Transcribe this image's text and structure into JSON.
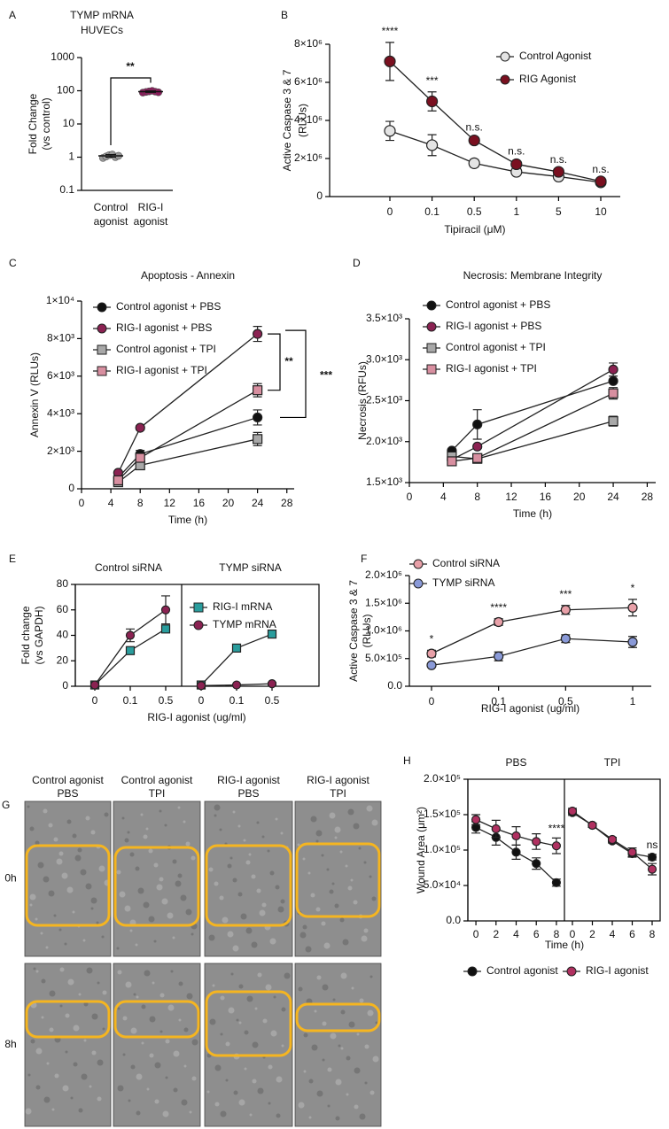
{
  "chart_data": [
    {
      "type": "dot",
      "panel": "A",
      "title": [
        "TYMP mRNA",
        "HUVECs"
      ],
      "ylabel": [
        "Fold Change",
        "(vs control)"
      ],
      "categories": [
        [
          "Control",
          "agonist"
        ],
        [
          "RIG-I",
          "agonist"
        ]
      ],
      "category_colors": [
        "#111111",
        "#8b1a5a"
      ],
      "log_scale": true,
      "ylim": [
        0.1,
        1000
      ],
      "yticks": [
        0.1,
        1,
        10,
        100,
        1000
      ],
      "points": [
        [
          0.95,
          1.05,
          1.15,
          1.2,
          1.0,
          1.1
        ],
        [
          88,
          92,
          96,
          100,
          94,
          90
        ]
      ],
      "point_colors": [
        "#999999",
        "#8b1a5a"
      ],
      "means": [
        1.1,
        94
      ],
      "errors": [
        0.1,
        5
      ],
      "annotation": "**"
    },
    {
      "type": "line",
      "panel": "B",
      "xlabel": "Tipiracil (μM)",
      "ylabel": [
        "Active Caspase 3 & 7",
        "(RLUs)"
      ],
      "categories": [
        "0",
        "0.1",
        "0.5",
        "1",
        "5",
        "10"
      ],
      "ylim": [
        0,
        8000000
      ],
      "yticks": [
        0,
        {
          "value": 2000000,
          "label": "2×10⁶"
        },
        {
          "value": 4000000,
          "label": "4×10⁶"
        },
        {
          "value": 6000000,
          "label": "6×10⁶"
        },
        {
          "value": 8000000,
          "label": "8×10⁶"
        }
      ],
      "series": [
        {
          "name": "Control Agonist",
          "color": "#e4e4e4",
          "marker": "circle",
          "values": [
            3450000,
            2700000,
            1750000,
            1300000,
            1050000,
            750000
          ],
          "errors": [
            500000,
            550000,
            200000,
            100000,
            100000,
            50000
          ]
        },
        {
          "name": "RIG Agonist",
          "color": "#7a1020",
          "marker": "circle",
          "values": [
            7100000,
            5000000,
            2950000,
            1700000,
            1300000,
            800000
          ],
          "errors": [
            1000000,
            500000,
            100000,
            100000,
            50000,
            50000
          ]
        }
      ],
      "annotations": [
        "****",
        "***",
        "n.s.",
        "n.s.",
        "n.s.",
        "n.s."
      ],
      "legend": "upper right"
    },
    {
      "type": "line",
      "panel": "C",
      "title": "Apoptosis - Annexin",
      "xlabel": "Time (h)",
      "ylabel": "Annexin V (RLUs)",
      "xlim": [
        0,
        29
      ],
      "xticks": [
        0,
        4,
        8,
        12,
        16,
        20,
        24,
        28
      ],
      "ylim": [
        0,
        10000
      ],
      "yticks": [
        0,
        {
          "value": 2000,
          "label": "2×10³"
        },
        {
          "value": 4000,
          "label": "4×10³"
        },
        {
          "value": 6000,
          "label": "6×10³"
        },
        {
          "value": 8000,
          "label": "8×10³"
        },
        {
          "value": 10000,
          "label": "1×10⁴"
        }
      ],
      "series": [
        {
          "name": "Control agonist + PBS",
          "color": "#111111",
          "marker": "circle",
          "x": [
            5,
            8,
            24
          ],
          "values": [
            600,
            1850,
            3800
          ],
          "errors": [
            100,
            200,
            400
          ]
        },
        {
          "name": "RIG-I agonist + PBS",
          "color": "#8b2252",
          "marker": "circle",
          "x": [
            5,
            8,
            24
          ],
          "values": [
            850,
            3250,
            8250
          ],
          "errors": [
            50,
            100,
            400
          ]
        },
        {
          "name": "Control agonist + TPI",
          "color": "#a8a8a8",
          "marker": "square",
          "x": [
            5,
            8,
            24
          ],
          "values": [
            350,
            1250,
            2650
          ],
          "errors": [
            50,
            100,
            350
          ]
        },
        {
          "name": "RIG-I agonist + TPI",
          "color": "#d88fa0",
          "marker": "square",
          "x": [
            5,
            8,
            24
          ],
          "values": [
            450,
            1650,
            5250
          ],
          "errors": [
            50,
            100,
            350
          ]
        }
      ],
      "brackets": [
        "**",
        "***"
      ],
      "legend": "upper left"
    },
    {
      "type": "line",
      "panel": "D",
      "title": "Necrosis: Membrane Integrity",
      "xlabel": "Time (h)",
      "ylabel": "Necrosis (RFUs)",
      "xlim": [
        0,
        29
      ],
      "xticks": [
        0,
        4,
        8,
        12,
        16,
        20,
        24,
        28
      ],
      "ylim": [
        1500,
        3500
      ],
      "yticks": [
        {
          "value": 1500,
          "label": "1.5×10³"
        },
        {
          "value": 2000,
          "label": "2.0×10³"
        },
        {
          "value": 2500,
          "label": "2.5×10³"
        },
        {
          "value": 3000,
          "label": "3.0×10³"
        },
        {
          "value": 3500,
          "label": "3.5×10³"
        }
      ],
      "series": [
        {
          "name": "Control agonist + PBS",
          "color": "#111111",
          "marker": "circle",
          "x": [
            5,
            8,
            24
          ],
          "values": [
            1890,
            2210,
            2740
          ],
          "errors": [
            20,
            180,
            20
          ]
        },
        {
          "name": "RIG-I agonist + PBS",
          "color": "#8b2252",
          "marker": "circle",
          "x": [
            5,
            8,
            24
          ],
          "values": [
            1780,
            1940,
            2880
          ],
          "errors": [
            20,
            20,
            80
          ]
        },
        {
          "name": "Control agonist + TPI",
          "color": "#a8a8a8",
          "marker": "square",
          "x": [
            5,
            8,
            24
          ],
          "values": [
            1820,
            1790,
            2250
          ],
          "errors": [
            20,
            20,
            60
          ]
        },
        {
          "name": "RIG-I agonist + TPI",
          "color": "#d88fa0",
          "marker": "square",
          "x": [
            5,
            8,
            24
          ],
          "values": [
            1760,
            1800,
            2590
          ],
          "errors": [
            20,
            20,
            70
          ]
        }
      ],
      "legend": "upper left"
    },
    {
      "type": "grouped-line",
      "panel": "E",
      "groups": [
        "Control siRNA",
        "TYMP siRNA"
      ],
      "xlabel": "RIG-I agonist (ug/ml)",
      "ylabel": [
        "Fold change",
        "(vs GAPDH)"
      ],
      "categories": [
        "0",
        "0.1",
        "0.5"
      ],
      "ylim": [
        0,
        80
      ],
      "yticks": [
        0,
        20,
        40,
        60,
        80
      ],
      "series": [
        {
          "name": "RIG-I mRNA",
          "color": "#2a9d9d",
          "marker": "square",
          "values": [
            [
              1,
              28,
              45
            ],
            [
              1,
              30,
              41
            ]
          ],
          "errors": [
            [
              0.5,
              2,
              1
            ],
            [
              0.5,
              1,
              2
            ]
          ]
        },
        {
          "name": "TYMP mRNA",
          "color": "#8b2252",
          "marker": "circle",
          "values": [
            [
              1,
              40,
              60
            ],
            [
              0.5,
              1,
              2
            ]
          ],
          "errors": [
            [
              0.5,
              5,
              11
            ],
            [
              0.3,
              0.5,
              1
            ]
          ]
        }
      ],
      "legend": "upper left"
    },
    {
      "type": "line",
      "panel": "F",
      "xlabel": "RIG-I agonist (ug/ml)",
      "ylabel": [
        "Active Caspase 3 & 7",
        "(RLUs)"
      ],
      "categories": [
        "0",
        "0.1",
        "0.5",
        "1"
      ],
      "ylim": [
        0,
        2000000
      ],
      "yticks": [
        {
          "value": 0,
          "label": "0.0"
        },
        {
          "value": 500000,
          "label": "5.0×10⁵"
        },
        {
          "value": 1000000,
          "label": "1.0×10⁶"
        },
        {
          "value": 1500000,
          "label": "1.5×10⁶"
        },
        {
          "value": 2000000,
          "label": "2.0×10⁶"
        }
      ],
      "series": [
        {
          "name": "Control siRNA",
          "color": "#e8a0a8",
          "marker": "circle",
          "values": [
            590000,
            1160000,
            1380000,
            1420000
          ],
          "errors": [
            60000,
            60000,
            80000,
            150000
          ]
        },
        {
          "name": "TYMP siRNA",
          "color": "#8a9ad8",
          "marker": "circle",
          "values": [
            380000,
            540000,
            860000,
            800000
          ],
          "errors": [
            20000,
            80000,
            70000,
            100000
          ]
        }
      ],
      "annotations": [
        "*",
        "****",
        "***",
        "*"
      ],
      "legend": "upper left"
    },
    {
      "type": "image-grid",
      "panel": "G",
      "columns": [
        [
          "Control agonist",
          "PBS"
        ],
        [
          "Control agonist",
          "TPI"
        ],
        [
          "RIG-I agonist",
          "PBS"
        ],
        [
          "RIG-I agonist",
          "TPI"
        ]
      ],
      "rows": [
        "0h",
        "8h"
      ],
      "outline_color": "#f5b520"
    },
    {
      "type": "grouped-line",
      "panel": "H",
      "groups": [
        "PBS",
        "TPI"
      ],
      "xlabel": "Time (h)",
      "ylabel": "Wound Area (μm²)",
      "x": [
        0,
        2,
        4,
        6,
        8
      ],
      "xlim": [
        -0.8,
        8.8
      ],
      "xticks": [
        0,
        2,
        4,
        6,
        8
      ],
      "ylim": [
        0,
        200000
      ],
      "yticks": [
        {
          "value": 0,
          "label": "0.0"
        },
        {
          "value": 50000,
          "label": "5.0×10⁴"
        },
        {
          "value": 100000,
          "label": "1.0×10⁵"
        },
        {
          "value": 150000,
          "label": "1.5×10⁵"
        },
        {
          "value": 200000,
          "label": "2.0×10⁵"
        }
      ],
      "series": [
        {
          "name": "Control agonist",
          "color": "#111111",
          "marker": "circle",
          "values": [
            [
              132000,
              118000,
              97000,
              81000,
              54000
            ],
            [
              153000,
              135000,
              113000,
              95000,
              90000
            ]
          ],
          "errors": [
            [
              8000,
              11000,
              10000,
              8000,
              5000
            ],
            [
              4000,
              3000,
              3000,
              5000,
              4000
            ]
          ]
        },
        {
          "name": "RIG-I agonist",
          "color": "#b03060",
          "marker": "circle",
          "values": [
            [
              143000,
              130000,
              120000,
              112000,
              106000
            ],
            [
              155000,
              135000,
              115000,
              97000,
              73000
            ]
          ],
          "errors": [
            [
              7000,
              12000,
              13000,
              11000,
              11000
            ],
            [
              4000,
              3000,
              3000,
              6000,
              8000
            ]
          ]
        }
      ],
      "annotations": [
        "****",
        "ns"
      ],
      "legend": "bottom"
    }
  ]
}
